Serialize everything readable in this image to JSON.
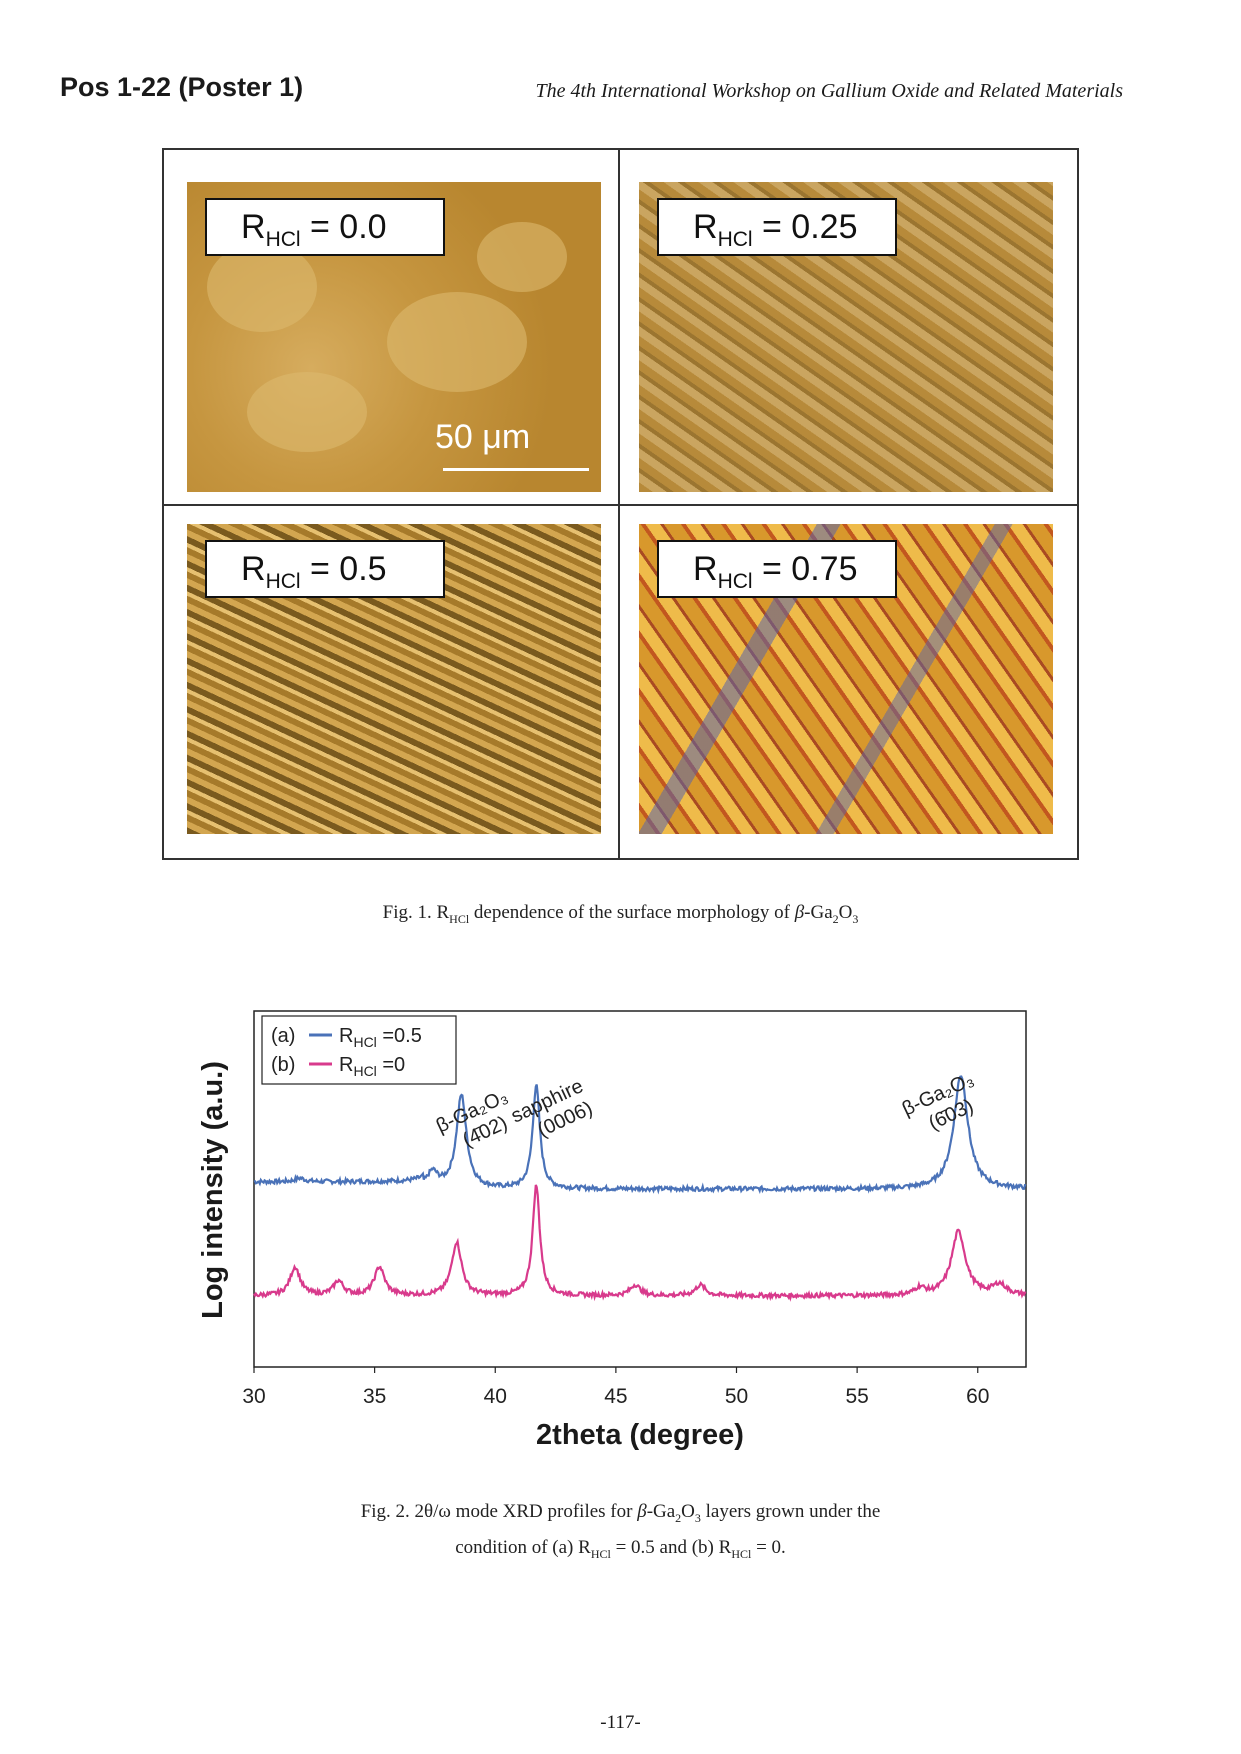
{
  "header": {
    "left": "Pos 1-22 (Poster 1)",
    "right": "The 4th International Workshop on Gallium Oxide and Related Materials"
  },
  "fig1": {
    "panels": [
      {
        "label_main": "R",
        "label_sub": "HCl",
        "label_value": " = 0.0"
      },
      {
        "label_main": "R",
        "label_sub": "HCl",
        "label_value": " = 0.25"
      },
      {
        "label_main": "R",
        "label_sub": "HCl",
        "label_value": " = 0.5"
      },
      {
        "label_main": "R",
        "label_sub": "HCl",
        "label_value": " = 0.75"
      }
    ],
    "scale_bar": "50 μm",
    "caption": {
      "a": "Fig. 1. R",
      "sub1": "HCl",
      "b": " dependence of the surface morphology of ",
      "beta": "β",
      "c": "-Ga",
      "sub2": "2",
      "d": "O",
      "sub3": "3"
    }
  },
  "fig2": {
    "caption_line1": {
      "a": "Fig. 2. 2θ/ω mode XRD profiles for ",
      "beta": "β",
      "b": "-Ga",
      "sub1": "2",
      "c": "O",
      "sub2": "3",
      "d": " layers grown under the"
    },
    "caption_line2": {
      "a": "condition of (a) R",
      "sub1": "HCl",
      "b": " = 0.5 and (b) R",
      "sub2": "HCl",
      "c": " = 0."
    }
  },
  "chart_data": {
    "type": "line",
    "xlabel": "2theta (degree)",
    "ylabel": "Log intensity (a.u.)",
    "xlim": [
      30,
      62
    ],
    "xticks": [
      30,
      35,
      40,
      45,
      50,
      55,
      60
    ],
    "y_ticks_shown": false,
    "legend_position": "top-left",
    "legend": [
      {
        "prefix": "(a)",
        "name": "R",
        "sub": "HCl",
        "value": " =0.5",
        "color": "#4a72b8"
      },
      {
        "prefix": "(b)",
        "name": "R",
        "sub": "HCl",
        "value": " =0",
        "color": "#d83a8c"
      }
    ],
    "series": [
      {
        "name": "(a) RHCl =0.5",
        "color": "#4a72b8",
        "baseline": 0.52,
        "peaks": [
          [
            31.9,
            0.01
          ],
          [
            37.4,
            0.04
          ],
          [
            38.6,
            0.26
          ],
          [
            41.7,
            0.29
          ],
          [
            59.3,
            0.32
          ]
        ]
      },
      {
        "name": "(b) RHCl =0",
        "color": "#d83a8c",
        "baseline": 0.2,
        "peaks": [
          [
            31.7,
            0.08
          ],
          [
            33.5,
            0.04
          ],
          [
            35.2,
            0.08
          ],
          [
            38.4,
            0.15
          ],
          [
            41.7,
            0.31
          ],
          [
            45.8,
            0.03
          ],
          [
            48.5,
            0.03
          ],
          [
            57.6,
            0.02
          ],
          [
            59.2,
            0.18
          ],
          [
            60.9,
            0.03
          ]
        ]
      }
    ],
    "annotations": [
      {
        "line1": "β-Ga₂O₃",
        "line2": "(4̄02)"
      },
      {
        "line1": "sapphire",
        "line2": "(0006)"
      },
      {
        "line1": "β-Ga₂O₃",
        "line2": "(6̄03)"
      }
    ]
  },
  "page_number": "-117-"
}
